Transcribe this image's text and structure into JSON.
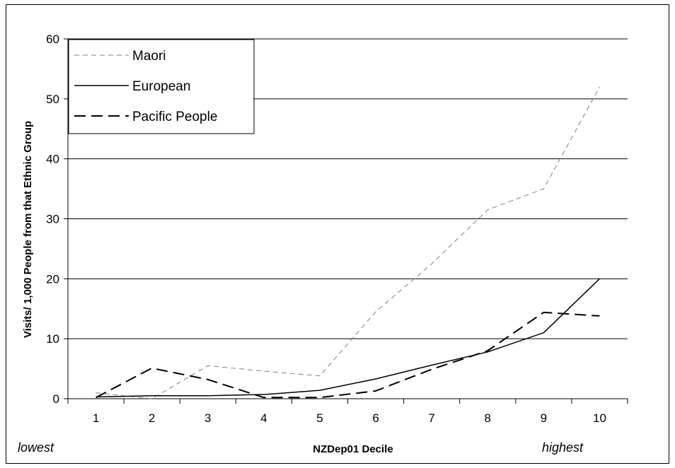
{
  "chart_data": {
    "type": "line",
    "title": "",
    "xlabel": "NZDep01 Decile",
    "ylabel": "Visits/ 1,000 People from that Ethnic Group",
    "x_left_note": "lowest",
    "x_right_note": "highest",
    "categories": [
      "1",
      "2",
      "3",
      "4",
      "5",
      "6",
      "7",
      "8",
      "9",
      "10"
    ],
    "ylim": [
      0,
      60
    ],
    "yticks": [
      "0",
      "10",
      "20",
      "30",
      "40",
      "50",
      "60"
    ],
    "grid": true,
    "legend_position": "top-left",
    "series": [
      {
        "name": "Maori",
        "values": [
          1.0,
          0.0,
          5.5,
          4.6,
          3.8,
          14.5,
          22.5,
          31.5,
          35.0,
          52.0
        ],
        "style": "dotted",
        "color": "#808080"
      },
      {
        "name": "European",
        "values": [
          0.3,
          0.5,
          0.5,
          0.7,
          1.4,
          3.3,
          5.6,
          7.8,
          11.0,
          20.0
        ],
        "style": "solid",
        "color": "#000000"
      },
      {
        "name": "Pacific People",
        "values": [
          0.2,
          5.1,
          3.2,
          0.2,
          0.2,
          1.3,
          4.9,
          8.0,
          14.4,
          13.8
        ],
        "style": "dashed",
        "color": "#000000"
      }
    ]
  }
}
